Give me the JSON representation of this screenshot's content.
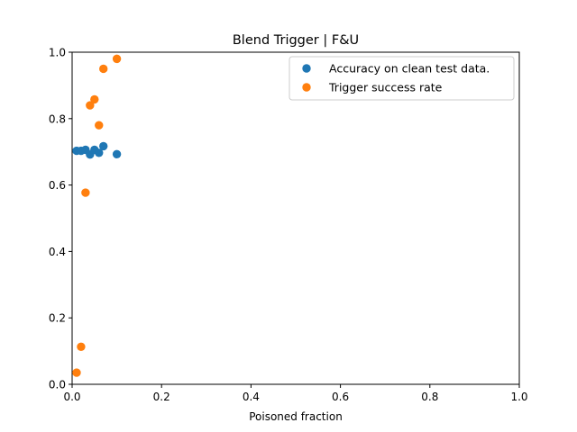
{
  "chart_data": {
    "type": "scatter",
    "title": "Blend Trigger | F&U",
    "xlabel": "Poisoned fraction",
    "ylabel": "",
    "xlim": [
      0,
      1
    ],
    "ylim": [
      0,
      1
    ],
    "x_ticks": [
      "0.0",
      "0.2",
      "0.4",
      "0.6",
      "0.8",
      "1.0"
    ],
    "y_ticks": [
      "0.0",
      "0.2",
      "0.4",
      "0.6",
      "0.8",
      "1.0"
    ],
    "grid": false,
    "legend_position": "top-right",
    "series": [
      {
        "name": "Accuracy on clean test data.",
        "color": "#1f77b4",
        "points": [
          {
            "x": 0.01,
            "y": 0.703
          },
          {
            "x": 0.02,
            "y": 0.703
          },
          {
            "x": 0.03,
            "y": 0.706
          },
          {
            "x": 0.04,
            "y": 0.692
          },
          {
            "x": 0.05,
            "y": 0.706
          },
          {
            "x": 0.06,
            "y": 0.697
          },
          {
            "x": 0.07,
            "y": 0.717
          },
          {
            "x": 0.1,
            "y": 0.693
          }
        ]
      },
      {
        "name": "Trigger success rate",
        "color": "#ff7f0e",
        "points": [
          {
            "x": 0.01,
            "y": 0.035
          },
          {
            "x": 0.02,
            "y": 0.113
          },
          {
            "x": 0.03,
            "y": 0.577
          },
          {
            "x": 0.04,
            "y": 0.84
          },
          {
            "x": 0.05,
            "y": 0.858
          },
          {
            "x": 0.06,
            "y": 0.78
          },
          {
            "x": 0.07,
            "y": 0.95
          },
          {
            "x": 0.1,
            "y": 0.98
          }
        ]
      }
    ]
  }
}
